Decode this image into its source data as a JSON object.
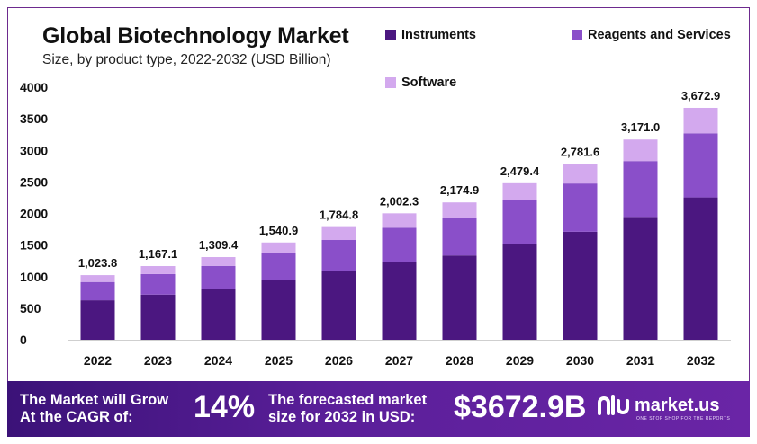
{
  "title": "Global Biotechnology Market",
  "subtitle": "Size, by product type, 2022-2032 (USD Billion)",
  "colors": {
    "instruments": "#4b1780",
    "reagents": "#8a4fc9",
    "software": "#d3a9ee",
    "frame": "#6d2a8e",
    "footer": "#4a1786"
  },
  "legend": {
    "instruments": "Instruments",
    "reagents": "Reagents and Services",
    "software": "Software"
  },
  "chart_data": {
    "type": "bar",
    "stacked": true,
    "title": "Global Biotechnology Market",
    "subtitle": "Size, by product type, 2022-2032 (USD Billion)",
    "categories": [
      "2022",
      "2023",
      "2024",
      "2025",
      "2026",
      "2027",
      "2028",
      "2029",
      "2030",
      "2031",
      "2032"
    ],
    "series": [
      {
        "name": "Instruments",
        "color": "#4b1780",
        "values": [
          625,
          715,
          805,
          950,
          1090,
          1230,
          1335,
          1515,
          1710,
          1945,
          2255
        ]
      },
      {
        "name": "Reagents and Services",
        "color": "#8a4fc9",
        "values": [
          290,
          325,
          365,
          425,
          490,
          545,
          595,
          700,
          765,
          885,
          1015
        ]
      },
      {
        "name": "Software",
        "color": "#d3a9ee",
        "values": [
          108.8,
          127.1,
          139.4,
          165.9,
          204.8,
          227.3,
          244.9,
          264.4,
          306.6,
          341.0,
          402.9
        ]
      }
    ],
    "totals": [
      "1,023.8",
      "1,167.1",
      "1,309.4",
      "1,540.9",
      "1,784.8",
      "2,002.3",
      "2,174.9",
      "2,479.4",
      "2,781.6",
      "3,171.0",
      "3,672.9"
    ],
    "total_values": [
      1023.8,
      1167.1,
      1309.4,
      1540.9,
      1784.8,
      2002.3,
      2174.9,
      2479.4,
      2781.6,
      3171.0,
      3672.9
    ],
    "yticks": [
      0,
      500,
      1000,
      1500,
      2000,
      2500,
      3000,
      3500,
      4000
    ],
    "ylim": [
      0,
      4000
    ],
    "grid": false,
    "legend_position": "top-right"
  },
  "footer": {
    "cagr_line1": "The Market will Grow",
    "cagr_line2": "At the CAGR of:",
    "cagr_value": "14%",
    "forecast_line1": "The forecasted market",
    "forecast_line2": "size for 2032 in USD:",
    "forecast_value": "$3672.9B",
    "logo_text": "market.us",
    "logo_tagline": "ONE STOP SHOP FOR THE REPORTS"
  }
}
